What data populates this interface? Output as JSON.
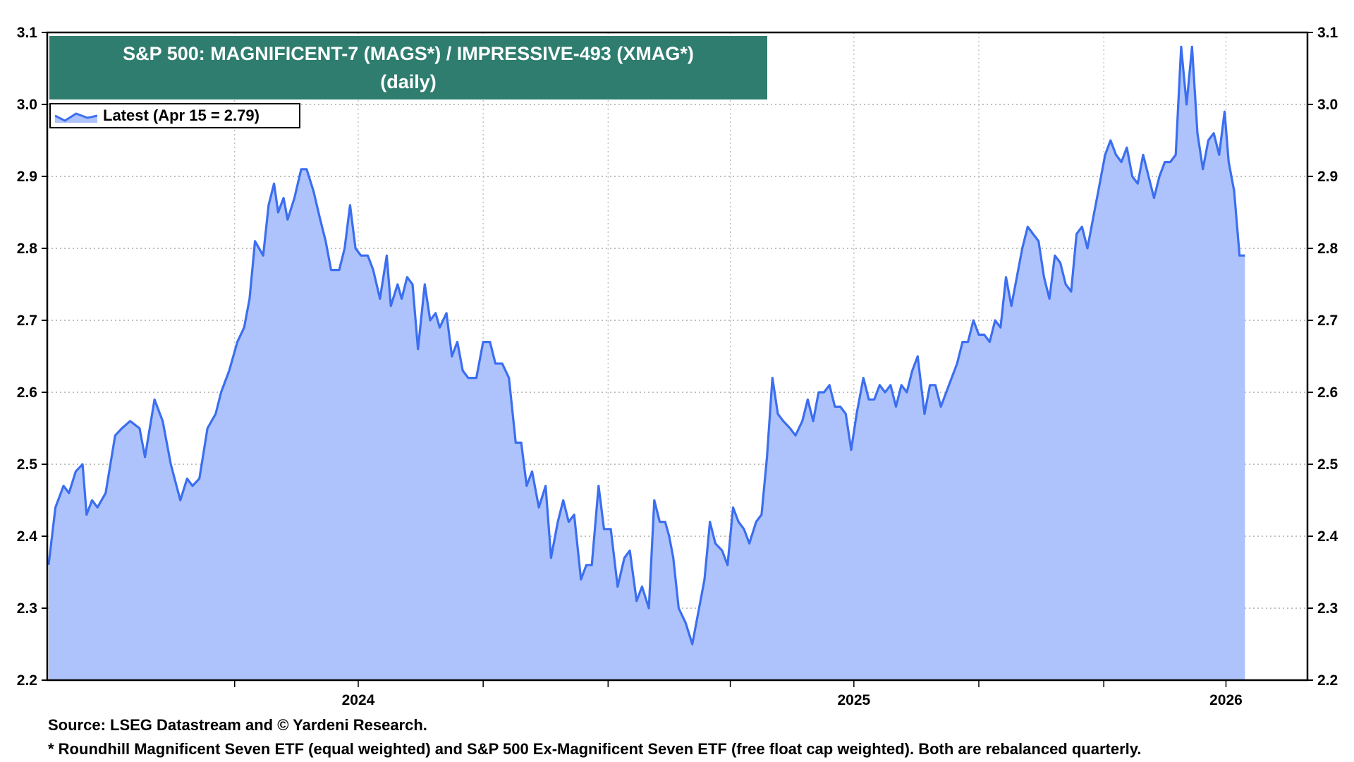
{
  "title_line1": "S&P 500: MAGNIFICENT-7 (MAGS*)  /  IMPRESSIVE-493 (XMAG*)",
  "title_line2": "(daily)",
  "legend_label": "Latest (Apr 15 = 2.79)",
  "source_note": "Source: LSEG Datastream and © Yardeni Research.",
  "footnote": "* Roundhill Magnificent Seven ETF (equal weighted) and S&P 500 Ex-Magnificent Seven ETF (free float cap weighted). Both are rebalanced quarterly.",
  "colors": {
    "title_bg": "#2e7d6f",
    "line": "#3b6ef0",
    "fill": "#aec3fb"
  },
  "chart_data": {
    "type": "area",
    "title": "S&P 500: MAGNIFICENT-7 (MAGS*)  /  IMPRESSIVE-493 (XMAG*) (daily)",
    "ylim": [
      2.2,
      3.1
    ],
    "y_ticks": [
      "2.2",
      "2.3",
      "2.4",
      "2.5",
      "2.6",
      "2.7",
      "2.8",
      "2.9",
      "3.0",
      "3.1"
    ],
    "x_range": [
      "2023-11-15",
      "2026-05-31"
    ],
    "x_tick_labels": [
      {
        "label": "2024",
        "date": "2024-07-01"
      },
      {
        "label": "2025",
        "date": "2025-07-01"
      },
      {
        "label": "2026",
        "date": "2026-04-01"
      }
    ],
    "grid": true,
    "legend_position": "top-left",
    "series": [
      {
        "name": "Latest (Apr 15 = 2.79)",
        "points": [
          [
            "2023-11-16",
            2.36
          ],
          [
            "2023-11-21",
            2.44
          ],
          [
            "2023-11-27",
            2.47
          ],
          [
            "2023-12-01",
            2.46
          ],
          [
            "2023-12-06",
            2.49
          ],
          [
            "2023-12-11",
            2.5
          ],
          [
            "2023-12-14",
            2.43
          ],
          [
            "2023-12-18",
            2.45
          ],
          [
            "2023-12-22",
            2.44
          ],
          [
            "2023-12-28",
            2.46
          ],
          [
            "2024-01-04",
            2.54
          ],
          [
            "2024-01-09",
            2.55
          ],
          [
            "2024-01-15",
            2.56
          ],
          [
            "2024-01-22",
            2.55
          ],
          [
            "2024-01-26",
            2.51
          ],
          [
            "2024-02-02",
            2.59
          ],
          [
            "2024-02-08",
            2.56
          ],
          [
            "2024-02-14",
            2.5
          ],
          [
            "2024-02-21",
            2.45
          ],
          [
            "2024-02-26",
            2.48
          ],
          [
            "2024-03-01",
            2.47
          ],
          [
            "2024-03-06",
            2.48
          ],
          [
            "2024-03-12",
            2.55
          ],
          [
            "2024-03-18",
            2.57
          ],
          [
            "2024-03-22",
            2.6
          ],
          [
            "2024-03-28",
            2.63
          ],
          [
            "2024-04-03",
            2.67
          ],
          [
            "2024-04-08",
            2.69
          ],
          [
            "2024-04-12",
            2.73
          ],
          [
            "2024-04-16",
            2.81
          ],
          [
            "2024-04-22",
            2.79
          ],
          [
            "2024-04-26",
            2.86
          ],
          [
            "2024-04-30",
            2.89
          ],
          [
            "2024-05-03",
            2.85
          ],
          [
            "2024-05-07",
            2.87
          ],
          [
            "2024-05-10",
            2.84
          ],
          [
            "2024-05-15",
            2.87
          ],
          [
            "2024-05-20",
            2.91
          ],
          [
            "2024-05-24",
            2.91
          ],
          [
            "2024-05-29",
            2.88
          ],
          [
            "2024-06-03",
            2.84
          ],
          [
            "2024-06-07",
            2.81
          ],
          [
            "2024-06-11",
            2.77
          ],
          [
            "2024-06-17",
            2.77
          ],
          [
            "2024-06-21",
            2.8
          ],
          [
            "2024-06-25",
            2.86
          ],
          [
            "2024-06-29",
            2.8
          ],
          [
            "2024-07-03",
            2.79
          ],
          [
            "2024-07-08",
            2.79
          ],
          [
            "2024-07-12",
            2.77
          ],
          [
            "2024-07-17",
            2.73
          ],
          [
            "2024-07-22",
            2.79
          ],
          [
            "2024-07-25",
            2.72
          ],
          [
            "2024-07-30",
            2.75
          ],
          [
            "2024-08-02",
            2.73
          ],
          [
            "2024-08-06",
            2.76
          ],
          [
            "2024-08-10",
            2.75
          ],
          [
            "2024-08-14",
            2.66
          ],
          [
            "2024-08-19",
            2.75
          ],
          [
            "2024-08-23",
            2.7
          ],
          [
            "2024-08-27",
            2.71
          ],
          [
            "2024-08-30",
            2.69
          ],
          [
            "2024-09-04",
            2.71
          ],
          [
            "2024-09-08",
            2.65
          ],
          [
            "2024-09-12",
            2.67
          ],
          [
            "2024-09-16",
            2.63
          ],
          [
            "2024-09-20",
            2.62
          ],
          [
            "2024-09-26",
            2.62
          ],
          [
            "2024-10-01",
            2.67
          ],
          [
            "2024-10-06",
            2.67
          ],
          [
            "2024-10-10",
            2.64
          ],
          [
            "2024-10-15",
            2.64
          ],
          [
            "2024-10-20",
            2.62
          ],
          [
            "2024-10-25",
            2.53
          ],
          [
            "2024-10-29",
            2.53
          ],
          [
            "2024-11-02",
            2.47
          ],
          [
            "2024-11-06",
            2.49
          ],
          [
            "2024-11-11",
            2.44
          ],
          [
            "2024-11-16",
            2.47
          ],
          [
            "2024-11-20",
            2.37
          ],
          [
            "2024-11-25",
            2.42
          ],
          [
            "2024-11-29",
            2.45
          ],
          [
            "2024-12-03",
            2.42
          ],
          [
            "2024-12-07",
            2.43
          ],
          [
            "2024-12-12",
            2.34
          ],
          [
            "2024-12-16",
            2.36
          ],
          [
            "2024-12-20",
            2.36
          ],
          [
            "2024-12-25",
            2.47
          ],
          [
            "2024-12-29",
            2.41
          ],
          [
            "2025-01-03",
            2.41
          ],
          [
            "2025-01-08",
            2.33
          ],
          [
            "2025-01-13",
            2.37
          ],
          [
            "2025-01-17",
            2.38
          ],
          [
            "2025-01-22",
            2.31
          ],
          [
            "2025-01-26",
            2.33
          ],
          [
            "2025-01-31",
            2.3
          ],
          [
            "2025-02-04",
            2.45
          ],
          [
            "2025-02-08",
            2.42
          ],
          [
            "2025-02-12",
            2.42
          ],
          [
            "2025-02-15",
            2.4
          ],
          [
            "2025-02-18",
            2.37
          ],
          [
            "2025-02-22",
            2.3
          ],
          [
            "2025-02-27",
            2.28
          ],
          [
            "2025-03-04",
            2.25
          ],
          [
            "2025-03-09",
            2.3
          ],
          [
            "2025-03-13",
            2.34
          ],
          [
            "2025-03-17",
            2.42
          ],
          [
            "2025-03-21",
            2.39
          ],
          [
            "2025-03-26",
            2.38
          ],
          [
            "2025-03-30",
            2.36
          ],
          [
            "2025-04-03",
            2.44
          ],
          [
            "2025-04-07",
            2.42
          ],
          [
            "2025-04-11",
            2.41
          ],
          [
            "2025-04-15",
            2.39
          ],
          [
            "2025-04-20",
            2.42
          ],
          [
            "2025-04-24",
            2.43
          ],
          [
            "2025-04-28",
            2.51
          ],
          [
            "2025-05-02",
            2.62
          ],
          [
            "2025-05-06",
            2.57
          ],
          [
            "2025-05-10",
            2.56
          ],
          [
            "2025-05-15",
            2.55
          ],
          [
            "2025-05-19",
            2.54
          ],
          [
            "2025-05-24",
            2.56
          ],
          [
            "2025-05-28",
            2.59
          ],
          [
            "2025-06-01",
            2.56
          ],
          [
            "2025-06-05",
            2.6
          ],
          [
            "2025-06-09",
            2.6
          ],
          [
            "2025-06-13",
            2.61
          ],
          [
            "2025-06-17",
            2.58
          ],
          [
            "2025-06-21",
            2.58
          ],
          [
            "2025-06-25",
            2.57
          ],
          [
            "2025-06-29",
            2.52
          ],
          [
            "2025-07-03",
            2.57
          ],
          [
            "2025-07-08",
            2.62
          ],
          [
            "2025-07-12",
            2.59
          ],
          [
            "2025-07-16",
            2.59
          ],
          [
            "2025-07-20",
            2.61
          ],
          [
            "2025-07-24",
            2.6
          ],
          [
            "2025-07-28",
            2.61
          ],
          [
            "2025-08-01",
            2.58
          ],
          [
            "2025-08-05",
            2.61
          ],
          [
            "2025-08-09",
            2.6
          ],
          [
            "2025-08-13",
            2.63
          ],
          [
            "2025-08-17",
            2.65
          ],
          [
            "2025-08-22",
            2.57
          ],
          [
            "2025-08-26",
            2.61
          ],
          [
            "2025-08-30",
            2.61
          ],
          [
            "2025-09-03",
            2.58
          ],
          [
            "2025-09-07",
            2.6
          ],
          [
            "2025-09-11",
            2.62
          ],
          [
            "2025-09-15",
            2.64
          ],
          [
            "2025-09-19",
            2.67
          ],
          [
            "2025-09-23",
            2.67
          ],
          [
            "2025-09-27",
            2.7
          ],
          [
            "2025-10-01",
            2.68
          ],
          [
            "2025-10-05",
            2.68
          ],
          [
            "2025-10-09",
            2.67
          ],
          [
            "2025-10-13",
            2.7
          ],
          [
            "2025-10-17",
            2.69
          ],
          [
            "2025-10-21",
            2.76
          ],
          [
            "2025-10-25",
            2.72
          ],
          [
            "2025-10-29",
            2.76
          ],
          [
            "2025-11-02",
            2.8
          ],
          [
            "2025-11-06",
            2.83
          ],
          [
            "2025-11-10",
            2.82
          ],
          [
            "2025-11-14",
            2.81
          ],
          [
            "2025-11-18",
            2.76
          ],
          [
            "2025-11-22",
            2.73
          ],
          [
            "2025-11-26",
            2.79
          ],
          [
            "2025-11-30",
            2.78
          ],
          [
            "2025-12-04",
            2.75
          ],
          [
            "2025-12-08",
            2.74
          ],
          [
            "2025-12-12",
            2.82
          ],
          [
            "2025-12-16",
            2.83
          ],
          [
            "2025-12-20",
            2.8
          ],
          [
            "2025-12-24",
            2.84
          ],
          [
            "2025-12-28",
            2.88
          ],
          [
            "2026-01-02",
            2.93
          ],
          [
            "2026-01-06",
            2.95
          ],
          [
            "2026-01-10",
            2.93
          ],
          [
            "2026-01-14",
            2.92
          ],
          [
            "2026-01-18",
            2.94
          ],
          [
            "2026-01-22",
            2.9
          ],
          [
            "2026-01-26",
            2.89
          ],
          [
            "2026-01-30",
            2.93
          ],
          [
            "2026-02-03",
            2.9
          ],
          [
            "2026-02-07",
            2.87
          ],
          [
            "2026-02-11",
            2.9
          ],
          [
            "2026-02-15",
            2.92
          ],
          [
            "2026-02-19",
            2.92
          ],
          [
            "2026-02-23",
            2.93
          ],
          [
            "2026-02-27",
            3.08
          ],
          [
            "2026-03-03",
            3.0
          ],
          [
            "2026-03-07",
            3.08
          ],
          [
            "2026-03-11",
            2.96
          ],
          [
            "2026-03-15",
            2.91
          ],
          [
            "2026-03-19",
            2.95
          ],
          [
            "2026-03-23",
            2.96
          ],
          [
            "2026-03-27",
            2.93
          ],
          [
            "2026-03-31",
            2.99
          ],
          [
            "2026-04-03",
            2.92
          ],
          [
            "2026-04-07",
            2.88
          ],
          [
            "2026-04-11",
            2.79
          ],
          [
            "2026-04-15",
            2.79
          ]
        ]
      }
    ]
  }
}
